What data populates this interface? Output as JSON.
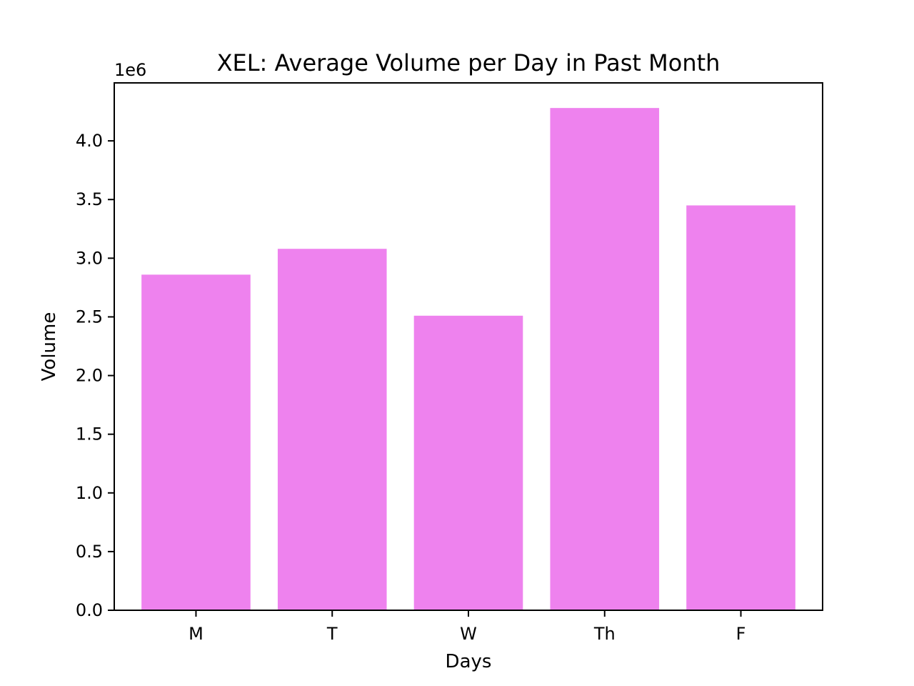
{
  "chart_data": {
    "type": "bar",
    "title": "XEL: Average Volume per Day in Past Month",
    "xlabel": "Days",
    "ylabel": "Volume",
    "y_offset_label": "1e6",
    "categories": [
      "M",
      "T",
      "W",
      "Th",
      "F"
    ],
    "values": [
      2860000,
      3080000,
      2510000,
      4280000,
      3450000
    ],
    "ylim": [
      0,
      4494000
    ],
    "y_ticks": [
      0,
      500000,
      1000000,
      1500000,
      2000000,
      2500000,
      3000000,
      3500000,
      4000000
    ],
    "y_tick_labels": [
      "0.0",
      "0.5",
      "1.0",
      "1.5",
      "2.0",
      "2.5",
      "3.0",
      "3.5",
      "4.0"
    ],
    "bar_color": "#ee82ee",
    "grid": false,
    "legend": "none"
  }
}
